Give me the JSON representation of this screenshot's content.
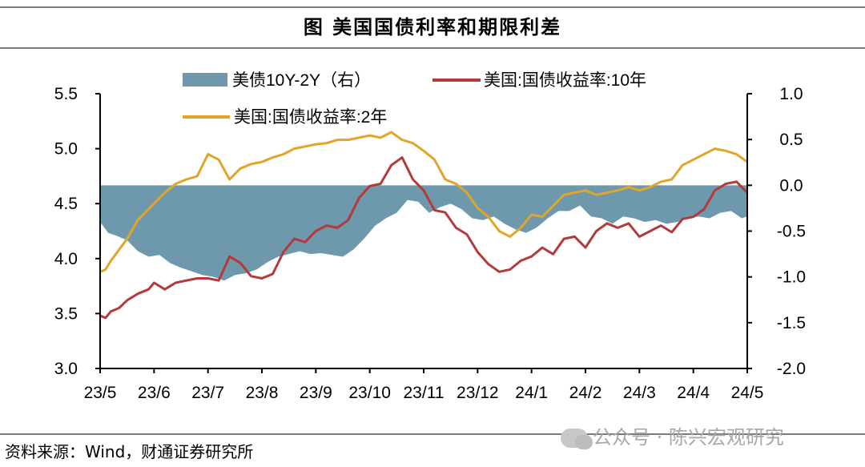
{
  "title": "图  美国国债利率和期限利差",
  "source": "资料来源：Wind，财通证券研究所",
  "watermark": "公众号 · 陈兴宏观研究",
  "colors": {
    "spread": "#6e99ad",
    "y10": "#b23a3a",
    "y2": "#e0a52a",
    "axis": "#000000"
  },
  "chart_data": {
    "type": "line",
    "x_tick_labels": [
      "23/5",
      "23/6",
      "23/7",
      "23/8",
      "23/9",
      "23/10",
      "23/11",
      "23/12",
      "24/1",
      "24/2",
      "24/3",
      "24/4",
      "24/5"
    ],
    "left_axis": {
      "ylim": [
        3.0,
        5.5
      ],
      "ticks": [
        "3.0",
        "3.5",
        "4.0",
        "4.5",
        "5.0",
        "5.5"
      ]
    },
    "right_axis": {
      "ylim": [
        -2.0,
        1.0
      ],
      "ticks": [
        "-2.0",
        "-1.5",
        "-1.0",
        "-0.5",
        "0.0",
        "0.5",
        "1.0"
      ]
    },
    "legend": [
      "美债10Y-2Y（右）",
      "美国:国债收益率:10年",
      "美国:国债收益率:2年"
    ],
    "series": [
      {
        "name": "美债10Y-2Y（右）",
        "type": "area",
        "axis": "right",
        "x": [
          0,
          0.15,
          0.3,
          0.5,
          0.7,
          0.9,
          1.1,
          1.3,
          1.5,
          1.7,
          1.9,
          2.1,
          2.3,
          2.5,
          2.7,
          2.9,
          3.1,
          3.3,
          3.5,
          3.7,
          3.9,
          4.1,
          4.3,
          4.5,
          4.7,
          4.9,
          5.1,
          5.3,
          5.5,
          5.7,
          5.9,
          6.1,
          6.3,
          6.5,
          6.7,
          6.9,
          7.1,
          7.3,
          7.5,
          7.7,
          7.9,
          8.1,
          8.3,
          8.5,
          8.7,
          8.9,
          9.1,
          9.3,
          9.5,
          9.7,
          9.9,
          10.1,
          10.3,
          10.5,
          10.7,
          10.9,
          11.1,
          11.3,
          11.5,
          11.7,
          11.9,
          12.0
        ],
        "y": [
          -0.4,
          -0.52,
          -0.55,
          -0.6,
          -0.72,
          -0.78,
          -0.76,
          -0.85,
          -0.9,
          -0.94,
          -0.98,
          -1.0,
          -1.04,
          -0.98,
          -0.96,
          -0.92,
          -0.84,
          -0.78,
          -0.75,
          -0.72,
          -0.75,
          -0.74,
          -0.76,
          -0.78,
          -0.7,
          -0.58,
          -0.44,
          -0.36,
          -0.3,
          -0.16,
          -0.18,
          -0.3,
          -0.24,
          -0.2,
          -0.26,
          -0.36,
          -0.38,
          -0.34,
          -0.42,
          -0.48,
          -0.52,
          -0.46,
          -0.36,
          -0.28,
          -0.28,
          -0.22,
          -0.34,
          -0.36,
          -0.42,
          -0.34,
          -0.36,
          -0.4,
          -0.38,
          -0.42,
          -0.4,
          -0.36,
          -0.34,
          -0.36,
          -0.3,
          -0.28,
          -0.36,
          -0.34
        ]
      },
      {
        "name": "美国:国债收益率:10年",
        "type": "line",
        "axis": "left",
        "x": [
          0,
          0.1,
          0.2,
          0.35,
          0.5,
          0.7,
          0.9,
          1.0,
          1.2,
          1.4,
          1.6,
          1.8,
          2.0,
          2.2,
          2.4,
          2.6,
          2.8,
          3.0,
          3.2,
          3.4,
          3.6,
          3.8,
          4.0,
          4.2,
          4.4,
          4.6,
          4.8,
          5.0,
          5.2,
          5.4,
          5.6,
          5.8,
          6.0,
          6.2,
          6.4,
          6.6,
          6.8,
          7.0,
          7.2,
          7.4,
          7.6,
          7.8,
          8.0,
          8.2,
          8.4,
          8.6,
          8.8,
          9.0,
          9.2,
          9.4,
          9.6,
          9.8,
          10.0,
          10.2,
          10.4,
          10.6,
          10.8,
          11.0,
          11.2,
          11.4,
          11.6,
          11.8,
          12.0
        ],
        "y": [
          3.48,
          3.46,
          3.52,
          3.55,
          3.62,
          3.68,
          3.72,
          3.78,
          3.72,
          3.78,
          3.8,
          3.82,
          3.82,
          3.8,
          4.02,
          3.96,
          3.84,
          3.82,
          3.86,
          4.06,
          4.18,
          4.15,
          4.25,
          4.3,
          4.28,
          4.35,
          4.55,
          4.66,
          4.68,
          4.85,
          4.92,
          4.72,
          4.62,
          4.44,
          4.42,
          4.28,
          4.22,
          4.06,
          3.95,
          3.88,
          3.9,
          3.98,
          4.02,
          4.1,
          4.04,
          4.18,
          4.2,
          4.1,
          4.25,
          4.32,
          4.28,
          4.32,
          4.2,
          4.25,
          4.3,
          4.24,
          4.36,
          4.38,
          4.45,
          4.62,
          4.68,
          4.7,
          4.6
        ]
      },
      {
        "name": "美国:国债收益率:2年",
        "type": "line",
        "axis": "left",
        "x": [
          0,
          0.1,
          0.2,
          0.35,
          0.5,
          0.7,
          0.9,
          1.0,
          1.2,
          1.4,
          1.6,
          1.8,
          2.0,
          2.2,
          2.4,
          2.6,
          2.8,
          3.0,
          3.2,
          3.4,
          3.6,
          3.8,
          4.0,
          4.2,
          4.4,
          4.6,
          4.8,
          5.0,
          5.2,
          5.4,
          5.6,
          5.8,
          6.0,
          6.2,
          6.4,
          6.6,
          6.8,
          7.0,
          7.2,
          7.4,
          7.6,
          7.8,
          8.0,
          8.2,
          8.4,
          8.6,
          8.8,
          9.0,
          9.2,
          9.4,
          9.6,
          9.8,
          10.0,
          10.2,
          10.4,
          10.6,
          10.8,
          11.0,
          11.2,
          11.4,
          11.6,
          11.8,
          12.0
        ],
        "y": [
          3.88,
          3.9,
          3.98,
          4.08,
          4.18,
          4.35,
          4.45,
          4.5,
          4.6,
          4.68,
          4.72,
          4.75,
          4.95,
          4.9,
          4.72,
          4.82,
          4.86,
          4.88,
          4.92,
          4.95,
          5.0,
          5.02,
          5.04,
          5.05,
          5.08,
          5.08,
          5.1,
          5.12,
          5.1,
          5.15,
          5.08,
          5.05,
          4.98,
          4.9,
          4.72,
          4.68,
          4.6,
          4.46,
          4.38,
          4.25,
          4.2,
          4.28,
          4.4,
          4.38,
          4.48,
          4.58,
          4.6,
          4.62,
          4.58,
          4.6,
          4.62,
          4.65,
          4.62,
          4.65,
          4.7,
          4.72,
          4.85,
          4.9,
          4.95,
          5.0,
          4.98,
          4.95,
          4.88
        ]
      }
    ]
  }
}
